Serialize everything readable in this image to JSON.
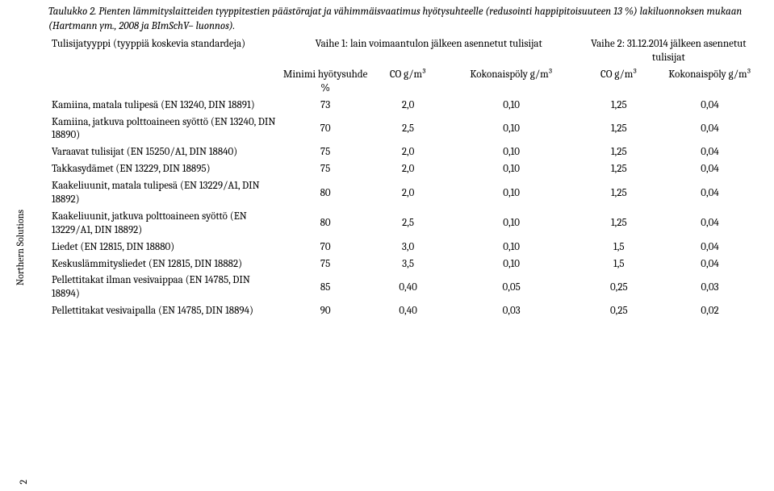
{
  "caption": "Taulukko 2. Pienten lämmityslaitteiden tyyppitestien päästörajat ja vähimmäisvaatimus hyötysuhteelle (redusointi happipitoisuuteen 13 %) lakiluonnoksen mukaan (Hartmann ym., 2008 ja BImSchV– luonnos).",
  "side_label": "Northern Solutions",
  "page_number": "2",
  "headers": {
    "phase1": "Vaihe 1: lain voimaantulon jälkeen asennetut tulisijat",
    "phase2": "Vaihe 2: 31.12.2014 jälkeen asennetut tulisijat",
    "type_col": "Tulisijatyyppi\n(tyyppiä koskevia standardeja)",
    "min_eff": "Minimi\nhyötysuhde %",
    "co1": "CO\ng/m³",
    "pm1": "Kokonaispöly g/m³",
    "co2": "CO\ng/m³",
    "pm2": "Kokonaispöly\ng/m³"
  },
  "rows": [
    {
      "label": "Kamiina, matala tulipesä\n(EN 13240, DIN 18891)",
      "eff": "73",
      "co1": "2,0",
      "pm1": "0,10",
      "co2": "1,25",
      "pm2": "0,04"
    },
    {
      "label": "Kamiina, jatkuva polttoaineen syöttö\n(EN 13240, DIN 18890)",
      "eff": "70",
      "co1": "2,5",
      "pm1": "0,10",
      "co2": "1,25",
      "pm2": "0,04"
    },
    {
      "label": "Varaavat tulisijat\n(EN 15250/A1, DIN 18840)",
      "eff": "75",
      "co1": "2,0",
      "pm1": "0,10",
      "co2": "1,25",
      "pm2": "0,04"
    },
    {
      "label": "Takkasydämet\n(EN 13229, DIN 18895)",
      "eff": "75",
      "co1": "2,0",
      "pm1": "0,10",
      "co2": "1,25",
      "pm2": "0,04"
    },
    {
      "label": "Kaakeliuunit, matala tulipesä\n(EN 13229/A1, DIN 18892)",
      "eff": "80",
      "co1": "2,0",
      "pm1": "0,10",
      "co2": "1,25",
      "pm2": "0,04"
    },
    {
      "label": "Kaakeliuunit, jatkuva polttoaineen syöttö\n(EN 13229/A1, DIN 18892)",
      "eff": "80",
      "co1": "2,5",
      "pm1": "0,10",
      "co2": "1,25",
      "pm2": "0,04"
    },
    {
      "label": "Liedet\n(EN 12815, DIN 18880)",
      "eff": "70",
      "co1": "3,0",
      "pm1": "0,10",
      "co2": "1,5",
      "pm2": "0,04"
    },
    {
      "label": "Keskuslämmitysliedet\n(EN 12815, DIN 18882)",
      "eff": "75",
      "co1": "3,5",
      "pm1": "0,10",
      "co2": "1,5",
      "pm2": "0,04"
    },
    {
      "label": "Pellettitakat ilman vesivaippaa\n(EN 14785, DIN 18894)",
      "eff": "85",
      "co1": "0,40",
      "pm1": "0,05",
      "co2": "0,25",
      "pm2": "0,03"
    },
    {
      "label": "Pellettitakat vesivaipalla\n(EN 14785, DIN 18894)",
      "eff": "90",
      "co1": "0,40",
      "pm1": "0,03",
      "co2": "0,25",
      "pm2": "0,02"
    }
  ]
}
